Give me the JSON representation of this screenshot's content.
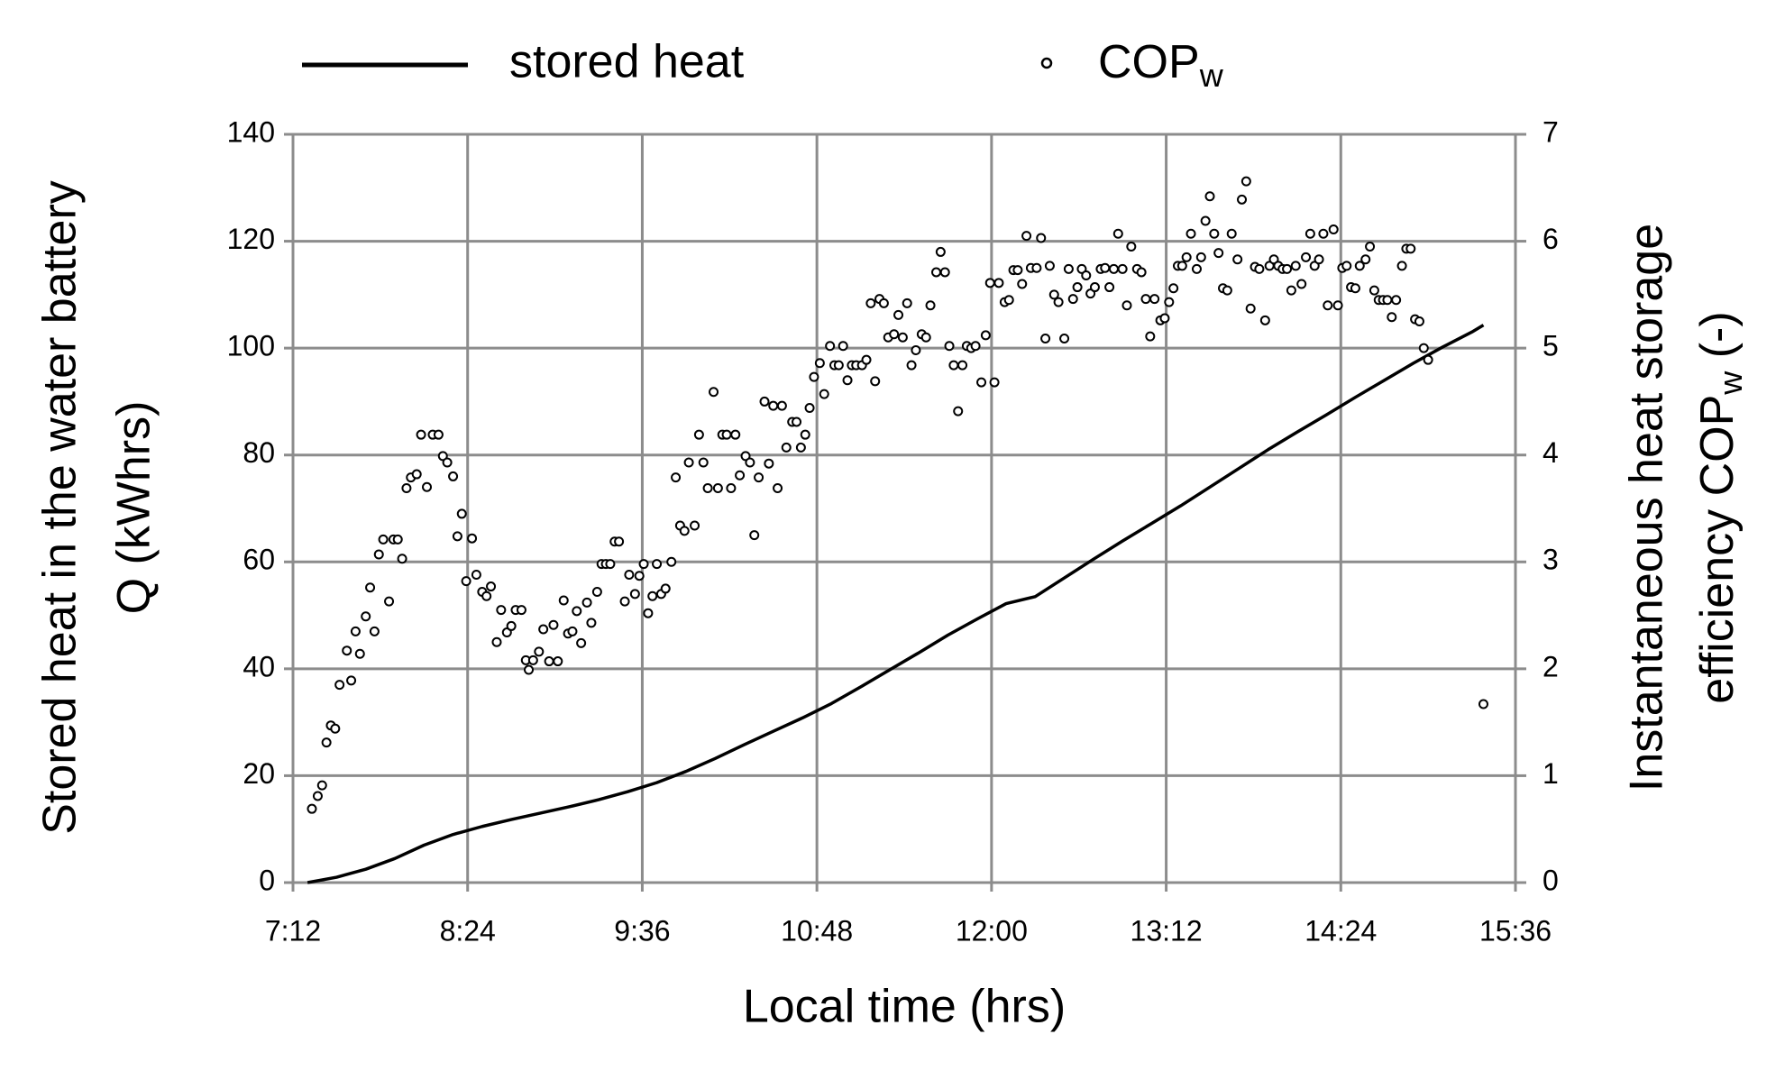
{
  "chart_data": {
    "type": "line",
    "xlabel": "Local time (hrs)",
    "ylabel": [
      "Stored heat in the water battery",
      "Q (kWhrs)"
    ],
    "y2label": {
      "line1": "Instantaneous heat storage",
      "line2": "efficiency  COP",
      "line2_subscript": "w",
      "line2_end": " (-)"
    },
    "xlim": [
      7.2,
      15.6
    ],
    "xticks": [
      {
        "value": 7.2,
        "label": "7:12"
      },
      {
        "value": 8.4,
        "label": "8:24"
      },
      {
        "value": 9.6,
        "label": "9:36"
      },
      {
        "value": 10.8,
        "label": "10:48"
      },
      {
        "value": 12,
        "label": "12:00"
      },
      {
        "value": 13.2,
        "label": "13:12"
      },
      {
        "value": 14.4,
        "label": "14:24"
      },
      {
        "value": 15.6,
        "label": "15:36"
      }
    ],
    "ylim": [
      0,
      140
    ],
    "yticks": [
      0,
      20,
      40,
      60,
      80,
      100,
      120,
      140
    ],
    "y2lim": [
      0,
      7
    ],
    "y2ticks": [
      0,
      1,
      2,
      3,
      4,
      5,
      6,
      7
    ],
    "grid": true,
    "legend": "top",
    "series": [
      {
        "name": "stored heat",
        "color": "#000000",
        "type": "line",
        "x": [
          7.3,
          7.5,
          7.7,
          7.9,
          8.1,
          8.3,
          8.5,
          8.7,
          8.9,
          9.1,
          9.3,
          9.5,
          9.7,
          9.9,
          10.1,
          10.3,
          10.5,
          10.7,
          10.9,
          11.1,
          11.3,
          11.5,
          11.7,
          11.9,
          12.1,
          12.3,
          12.5,
          12.7,
          12.9,
          13.1,
          13.3,
          13.5,
          13.7,
          13.9,
          14.1,
          14.3,
          14.5,
          14.7,
          14.9,
          15.1,
          15.3,
          15.38
        ],
        "values": [
          0,
          1,
          2.5,
          4.5,
          7,
          9,
          10.5,
          11.8,
          13,
          14.2,
          15.5,
          17,
          18.7,
          20.8,
          23.2,
          25.8,
          28.3,
          30.8,
          33.5,
          36.6,
          39.8,
          43,
          46.3,
          49.3,
          52.2,
          53.5,
          57,
          60.5,
          63.9,
          67.2,
          70.5,
          74,
          77.5,
          81,
          84.3,
          87.5,
          90.8,
          94,
          97.2,
          100.2,
          103,
          104.3
        ]
      },
      {
        "name": "COP",
        "name_subscript": "w",
        "color": "#000000",
        "type": "scatter",
        "axis": "y2",
        "x": [
          7.33,
          7.37,
          7.4,
          7.43,
          7.46,
          7.49,
          7.52,
          7.57,
          7.6,
          7.63,
          7.66,
          7.7,
          7.73,
          7.76,
          7.79,
          7.82,
          7.86,
          7.89,
          7.92,
          7.95,
          7.98,
          8.01,
          8.05,
          8.08,
          8.12,
          8.16,
          8.2,
          8.23,
          8.26,
          8.3,
          8.33,
          8.36,
          8.39,
          8.43,
          8.46,
          8.5,
          8.53,
          8.56,
          8.6,
          8.63,
          8.67,
          8.7,
          8.73,
          8.77,
          8.8,
          8.82,
          8.85,
          8.89,
          8.92,
          8.96,
          8.99,
          9.02,
          9.06,
          9.09,
          9.12,
          9.15,
          9.18,
          9.22,
          9.25,
          9.29,
          9.32,
          9.35,
          9.38,
          9.41,
          9.44,
          9.48,
          9.51,
          9.55,
          9.58,
          9.61,
          9.64,
          9.67,
          9.7,
          9.73,
          9.76,
          9.8,
          9.83,
          9.86,
          9.89,
          9.92,
          9.96,
          9.99,
          10.02,
          10.05,
          10.09,
          10.12,
          10.15,
          10.18,
          10.21,
          10.24,
          10.27,
          10.31,
          10.34,
          10.37,
          10.4,
          10.44,
          10.47,
          10.5,
          10.53,
          10.56,
          10.59,
          10.63,
          10.66,
          10.69,
          10.72,
          10.75,
          10.78,
          10.82,
          10.85,
          10.89,
          10.92,
          10.95,
          10.98,
          11.01,
          11.04,
          11.07,
          11.11,
          11.14,
          11.17,
          11.2,
          11.23,
          11.26,
          11.29,
          11.33,
          11.36,
          11.39,
          11.42,
          11.45,
          11.48,
          11.52,
          11.55,
          11.58,
          11.62,
          11.65,
          11.68,
          11.71,
          11.74,
          11.77,
          11.8,
          11.83,
          11.86,
          11.89,
          11.93,
          11.96,
          11.99,
          12.02,
          12.05,
          12.09,
          12.12,
          12.15,
          12.18,
          12.21,
          12.24,
          12.27,
          12.31,
          12.34,
          12.37,
          12.4,
          12.43,
          12.46,
          12.5,
          12.53,
          12.56,
          12.59,
          12.62,
          12.65,
          12.68,
          12.71,
          12.75,
          12.78,
          12.81,
          12.84,
          12.87,
          12.9,
          12.93,
          12.96,
          13.0,
          13.03,
          13.06,
          13.09,
          13.12,
          13.16,
          13.19,
          13.22,
          13.25,
          13.28,
          13.31,
          13.34,
          13.37,
          13.41,
          13.44,
          13.47,
          13.5,
          13.53,
          13.56,
          13.59,
          13.62,
          13.65,
          13.69,
          13.72,
          13.75,
          13.78,
          13.81,
          13.84,
          13.88,
          13.91,
          13.94,
          13.97,
          14.0,
          14.03,
          14.06,
          14.09,
          14.13,
          14.16,
          14.19,
          14.22,
          14.25,
          14.28,
          14.31,
          14.35,
          14.38,
          14.41,
          14.44,
          14.47,
          14.5,
          14.53,
          14.57,
          14.6,
          14.63,
          14.66,
          14.69,
          14.72,
          14.75,
          14.78,
          14.82,
          14.85,
          14.88,
          14.91,
          14.94,
          14.97,
          15.0,
          15.38
        ],
        "values": [
          0.69,
          0.81,
          0.91,
          1.31,
          1.47,
          1.44,
          1.85,
          2.17,
          1.89,
          2.35,
          2.14,
          2.49,
          2.76,
          2.35,
          3.07,
          3.21,
          2.63,
          3.21,
          3.21,
          3.03,
          3.69,
          3.79,
          3.82,
          4.19,
          3.7,
          4.19,
          4.19,
          3.99,
          3.93,
          3.8,
          3.24,
          3.45,
          2.82,
          3.22,
          2.88,
          2.72,
          2.68,
          2.77,
          2.25,
          2.55,
          2.34,
          2.4,
          2.55,
          2.55,
          2.08,
          1.99,
          2.08,
          2.16,
          2.37,
          2.07,
          2.41,
          2.07,
          2.64,
          2.33,
          2.35,
          2.54,
          2.24,
          2.62,
          2.43,
          2.72,
          2.98,
          2.98,
          2.98,
          3.19,
          3.19,
          2.63,
          2.88,
          2.7,
          2.87,
          2.98,
          2.52,
          2.68,
          2.98,
          2.7,
          2.75,
          3.0,
          3.79,
          3.34,
          3.29,
          3.93,
          3.34,
          4.19,
          3.93,
          3.69,
          4.59,
          3.69,
          4.19,
          4.19,
          3.69,
          4.19,
          3.81,
          3.99,
          3.93,
          3.25,
          3.79,
          4.5,
          3.92,
          4.46,
          3.69,
          4.46,
          4.07,
          4.31,
          4.31,
          4.07,
          4.19,
          4.44,
          4.73,
          4.86,
          4.57,
          5.02,
          4.84,
          4.84,
          5.02,
          4.7,
          4.84,
          4.84,
          4.84,
          4.89,
          5.42,
          4.69,
          5.46,
          5.42,
          5.1,
          5.13,
          5.31,
          5.1,
          5.42,
          4.84,
          4.98,
          5.13,
          5.1,
          5.4,
          5.71,
          5.9,
          5.71,
          5.02,
          4.84,
          4.41,
          4.84,
          5.02,
          5.0,
          5.02,
          4.68,
          5.12,
          5.61,
          4.68,
          5.61,
          5.43,
          5.45,
          5.73,
          5.73,
          5.6,
          6.05,
          5.75,
          5.75,
          6.03,
          5.09,
          5.77,
          5.5,
          5.43,
          5.09,
          5.74,
          5.46,
          5.57,
          5.74,
          5.68,
          5.51,
          5.57,
          5.74,
          5.75,
          5.57,
          5.74,
          6.07,
          5.74,
          5.4,
          5.95,
          5.74,
          5.71,
          5.46,
          5.11,
          5.46,
          5.26,
          5.28,
          5.43,
          5.56,
          5.77,
          5.77,
          5.85,
          6.07,
          5.74,
          5.85,
          6.19,
          6.42,
          6.07,
          5.89,
          5.56,
          5.54,
          6.07,
          5.83,
          6.39,
          6.56,
          5.37,
          5.76,
          5.74,
          5.26,
          5.77,
          5.83,
          5.77,
          5.74,
          5.74,
          5.54,
          5.77,
          5.6,
          5.85,
          6.07,
          5.77,
          5.83,
          6.07,
          5.4,
          6.11,
          5.4,
          5.75,
          5.77,
          5.57,
          5.56,
          5.77,
          5.83,
          5.95,
          5.54,
          5.45,
          5.45,
          5.45,
          5.29,
          5.45,
          5.77,
          5.93,
          5.93,
          5.27,
          5.25,
          5.0,
          4.89,
          1.67
        ]
      }
    ]
  }
}
